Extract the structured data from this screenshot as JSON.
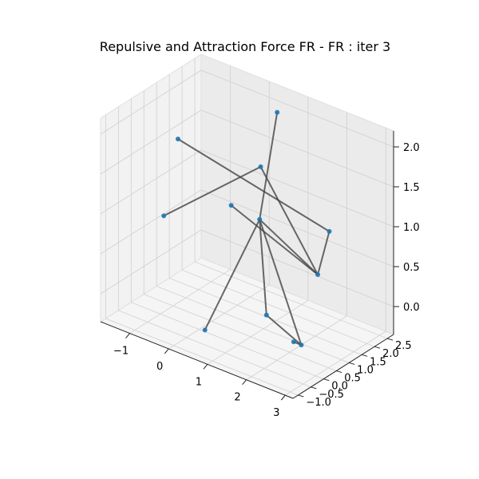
{
  "chart_data": {
    "type": "3d-network",
    "title": "Repulsive and Attraction Force FR - FR : iter 3",
    "x_ticks": [
      "−1",
      "0",
      "1",
      "2",
      "3"
    ],
    "y_ticks": [
      "−1.0",
      "−0.5",
      "0.0",
      "0.5",
      "1.0",
      "1.5",
      "2.0",
      "2.5"
    ],
    "z_ticks": [
      "0.0",
      "0.5",
      "1.0",
      "1.5",
      "2.0"
    ],
    "grid": true,
    "colors": {
      "node": "#1f77b4",
      "edge": "#444444",
      "pane": "#f2f2f2",
      "grid": "#d0d0d0"
    },
    "nodes": [
      {
        "id": 0,
        "x": 0.5,
        "y": 2.3,
        "z": 2.0
      },
      {
        "id": 1,
        "x": -1.2,
        "y": 1.0,
        "z": 1.6
      },
      {
        "id": 2,
        "x": 0.6,
        "y": 1.5,
        "z": 1.5
      },
      {
        "id": 3,
        "x": 0.3,
        "y": 0.8,
        "z": 1.1
      },
      {
        "id": 4,
        "x": 0.9,
        "y": 1.0,
        "z": 1.0
      },
      {
        "id": 5,
        "x": 2.3,
        "y": 1.6,
        "z": 1.0
      },
      {
        "id": 6,
        "x": 2.2,
        "y": 1.3,
        "z": 0.5
      },
      {
        "id": 7,
        "x": -1.5,
        "y": 0.9,
        "z": 0.6
      },
      {
        "id": 8,
        "x": 1.6,
        "y": 0.2,
        "z": 0.1
      },
      {
        "id": 9,
        "x": 2.3,
        "y": 0.2,
        "z": -0.1
      },
      {
        "id": 10,
        "x": 2.3,
        "y": 0.5,
        "z": -0.2
      },
      {
        "id": 11,
        "x": 1.0,
        "y": -1.3,
        "z": 0.1
      }
    ],
    "edges": [
      [
        0,
        4
      ],
      [
        1,
        5
      ],
      [
        2,
        7
      ],
      [
        2,
        6
      ],
      [
        3,
        6
      ],
      [
        4,
        6
      ],
      [
        4,
        8
      ],
      [
        4,
        10
      ],
      [
        5,
        6
      ],
      [
        8,
        10
      ],
      [
        9,
        10
      ],
      [
        4,
        11
      ]
    ]
  }
}
